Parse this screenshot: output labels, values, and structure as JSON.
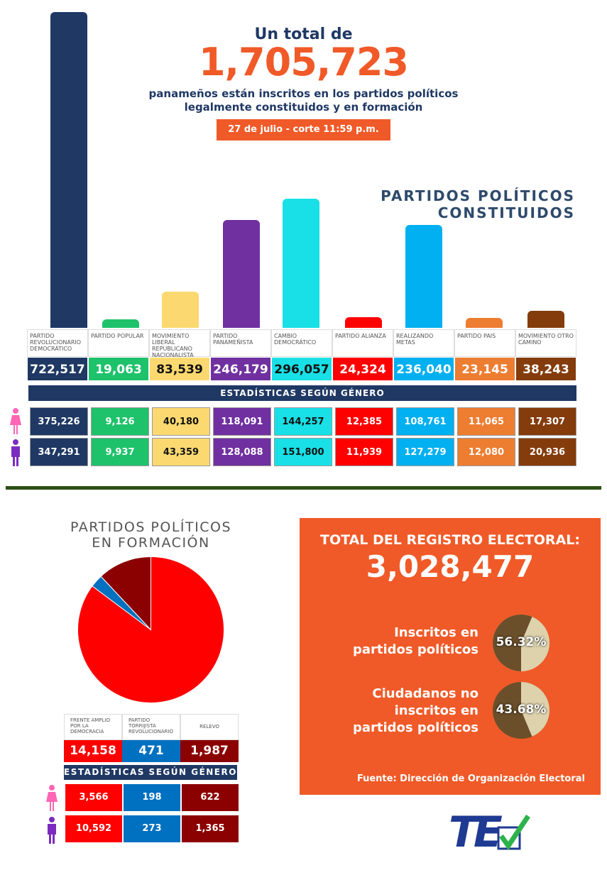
{
  "header": {
    "line1": "Un total de",
    "total": "1,705,723",
    "line2": "panameños están inscritos en los partidos políticos",
    "line3": "legalmente constituidos y en formación",
    "date": "27 de julio - corte 11:59 p.m."
  },
  "constituted": {
    "title1": "PARTIDOS POLÍTICOS",
    "title2": "CONSTITUIDOS",
    "gender_title": "ESTADÍSTICAS SEGÚN GÉNERO"
  },
  "chart_data": [
    {
      "type": "bar",
      "title": "PARTIDOS POLÍTICOS CONSTITUIDOS",
      "categories": [
        "PARTIDO REVOLUCIONARIO DEMOCRÁTICO",
        "PARTIDO POPULAR",
        "MOVIMIENTO LIBERAL REPUBLICANO NACIONALISTA",
        "PARTIDO PANAMEÑISTA",
        "CAMBIO DEMOCRÁTICO",
        "PARTIDO ALIANZA",
        "REALIZANDO METAS",
        "PARTIDO PAIS",
        "MOVIMIENTO OTRO CAMINO"
      ],
      "values": [
        722517,
        19063,
        83539,
        246179,
        296057,
        24324,
        236040,
        23145,
        38243
      ],
      "labels": [
        "722,517",
        "19,063",
        "83,539",
        "246,179",
        "296,057",
        "24,324",
        "236,040",
        "23,145",
        "38,243"
      ],
      "women": [
        "375,226",
        "9,126",
        "40,180",
        "118,091",
        "144,257",
        "12,385",
        "108,761",
        "11,065",
        "17,307"
      ],
      "men": [
        "347,291",
        "9,937",
        "43,359",
        "128,088",
        "151,800",
        "11,939",
        "127,279",
        "12,080",
        "20,936"
      ],
      "colors": [
        "#1f3864",
        "#1ec26b",
        "#fcd970",
        "#7030a0",
        "#18e0e6",
        "#fe0000",
        "#00b0f0",
        "#ed7d31",
        "#843c0c"
      ]
    },
    {
      "type": "pie",
      "title": "PARTIDOS POLÍTICOS EN FORMACIÓN",
      "categories": [
        "FRENTE AMPLIO POR LA DEMOCRACIA",
        "PARTIDO TORRIJISTA REVOLUCIONARIO",
        "RELEVO"
      ],
      "values": [
        14158,
        471,
        1987
      ],
      "labels": [
        "14,158",
        "471",
        "1,987"
      ],
      "women": [
        "3,566",
        "198",
        "622"
      ],
      "men": [
        "10,592",
        "273",
        "1,365"
      ],
      "colors": [
        "#fe0000",
        "#0070c0",
        "#8b0000"
      ]
    },
    {
      "type": "pie",
      "values": [
        56.32,
        43.68
      ],
      "categories": [
        "Inscritos en partidos políticos",
        "Ciudadanos no inscritos en partidos políticos"
      ],
      "colors": [
        "#6b4f2a",
        "#ddd2ac"
      ]
    }
  ],
  "formation": {
    "title1": "PARTIDOS POLÍTICOS",
    "title2": "EN FORMACIÓN",
    "gender_title": "ESTADÍSTICAS SEGÚN GÉNERO"
  },
  "registry": {
    "title": "TOTAL DEL REGISTRO ELECTORAL:",
    "total": "3,028,477",
    "inscritos_l1": "Inscritos en",
    "inscritos_l2": "partidos políticos",
    "inscritos_pct": "56.32%",
    "no_l1": "Ciudadanos no",
    "no_l2": "inscritos en",
    "no_l3": "partidos políticos",
    "no_pct": "43.68%",
    "source": "Fuente: Dirección de Organización Electoral"
  },
  "logo": {
    "text": "TE"
  }
}
